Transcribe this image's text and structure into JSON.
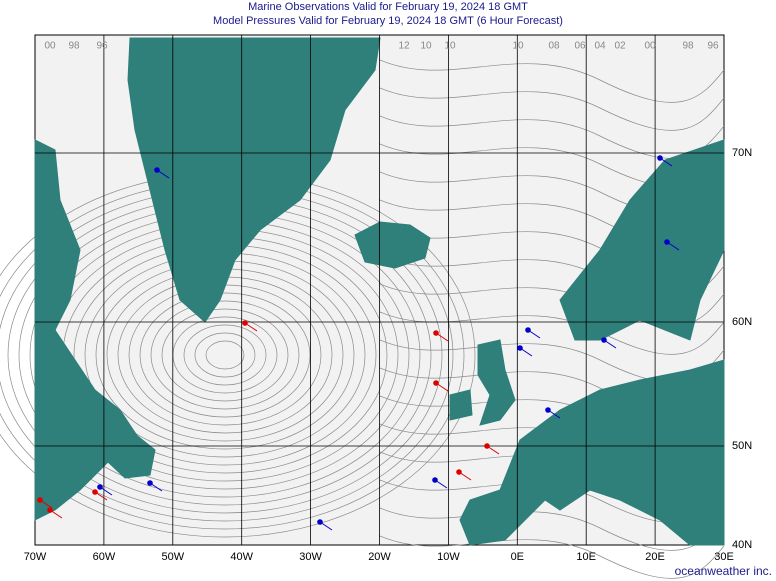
{
  "header": {
    "title": "Marine Observations Valid for February 19, 2024 18 GMT",
    "subtitle": "Model Pressures Valid for February 19, 2024 18 GMT (6 Hour Forecast)"
  },
  "map": {
    "longitude_labels": [
      "70W",
      "60W",
      "50W",
      "40W",
      "30W",
      "20W",
      "10W",
      "0E",
      "10E",
      "20E",
      "30E"
    ],
    "latitude_labels": [
      "70N",
      "60N",
      "50N",
      "40N"
    ],
    "isobar_labels": [
      "00",
      "98",
      "96",
      "12",
      "10",
      "10",
      "10",
      "08",
      "06",
      "04",
      "02",
      "00",
      "98",
      "96"
    ]
  },
  "footer": "oceanweather inc."
}
